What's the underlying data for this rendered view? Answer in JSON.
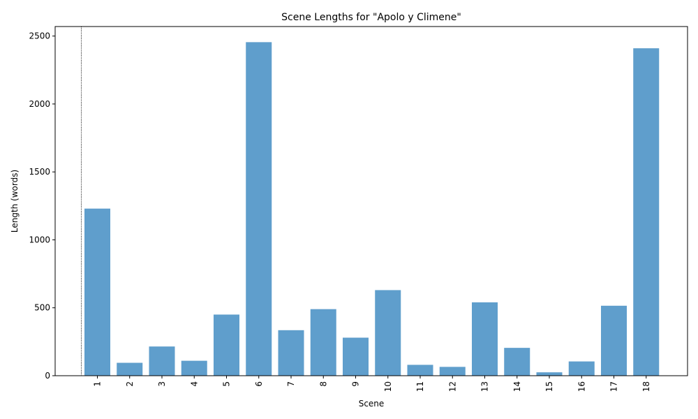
{
  "chart_data": {
    "type": "bar",
    "title": "Scene Lengths for \"Apolo y Climene\"",
    "xlabel": "Scene",
    "ylabel": "Length (words)",
    "categories": [
      "1",
      "2",
      "3",
      "4",
      "5",
      "6",
      "7",
      "8",
      "9",
      "10",
      "11",
      "12",
      "13",
      "14",
      "15",
      "16",
      "17",
      "18"
    ],
    "values": [
      1230,
      95,
      215,
      110,
      450,
      2455,
      335,
      490,
      280,
      630,
      80,
      65,
      540,
      205,
      25,
      105,
      515,
      2410
    ],
    "ylim": [
      0,
      2570
    ],
    "yticks": [
      0,
      500,
      1000,
      1500,
      2000,
      2500
    ],
    "x_tick_rotation": "vertical",
    "bar_color": "#5f9ecc",
    "reference_line": {
      "style": "dotted",
      "color": "#000000",
      "position": "before first scene"
    },
    "grid": false,
    "legend": "none"
  }
}
